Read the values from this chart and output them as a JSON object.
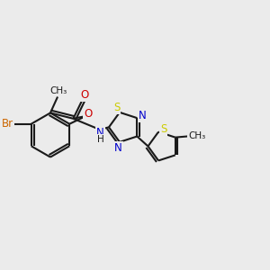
{
  "background_color": "#ebebeb",
  "bond_color": "#1a1a1a",
  "bond_width": 1.5,
  "atom_colors": {
    "Br": "#cc6600",
    "O": "#cc0000",
    "N": "#0000cc",
    "S": "#cccc00",
    "C": "#1a1a1a"
  },
  "fig_width": 3.0,
  "fig_height": 3.0,
  "dpi": 100,
  "xlim": [
    0,
    10
  ],
  "ylim": [
    0,
    10
  ]
}
